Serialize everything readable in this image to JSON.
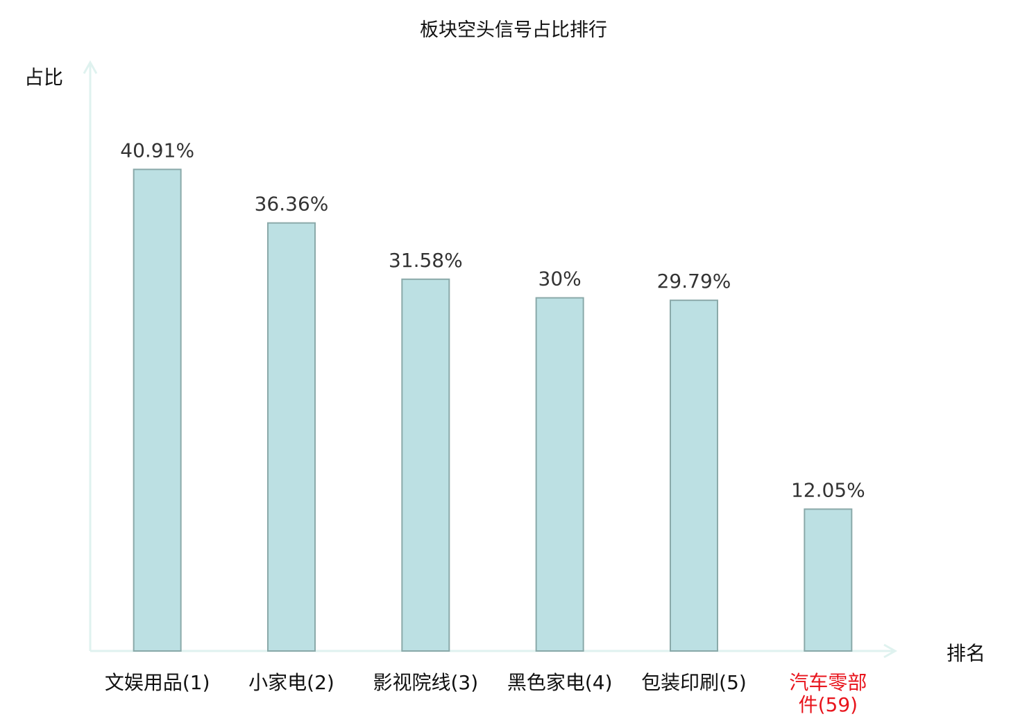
{
  "chart_data": {
    "type": "bar",
    "title": "板块空头信号占比排行",
    "ylabel": "占比",
    "xlabel": "排名",
    "categories": [
      "文娱用品(1)",
      "小家电(2)",
      "影视院线(3)",
      "黑色家电(4)",
      "包装印刷(5)",
      "汽车零部件(59)"
    ],
    "category_lines": [
      [
        "文娱用品(1)"
      ],
      [
        "小家电(2)"
      ],
      [
        "影视院线(3)"
      ],
      [
        "黑色家电(4)"
      ],
      [
        "包装印刷(5)"
      ],
      [
        "汽车零部",
        "件(59)"
      ]
    ],
    "values": [
      40.91,
      36.36,
      31.58,
      30,
      29.79,
      12.05
    ],
    "data_labels": [
      "40.91%",
      "36.36%",
      "31.58%",
      "30%",
      "29.79%",
      "12.05%"
    ],
    "highlight_index": 5,
    "ylim": [
      0,
      50
    ],
    "grid": false,
    "colors": {
      "bar_fill": "#bce0e3",
      "bar_stroke": "#8aa9a9",
      "axis": "#dff2ef",
      "label": "#333333",
      "highlight": "#e8141c"
    }
  }
}
